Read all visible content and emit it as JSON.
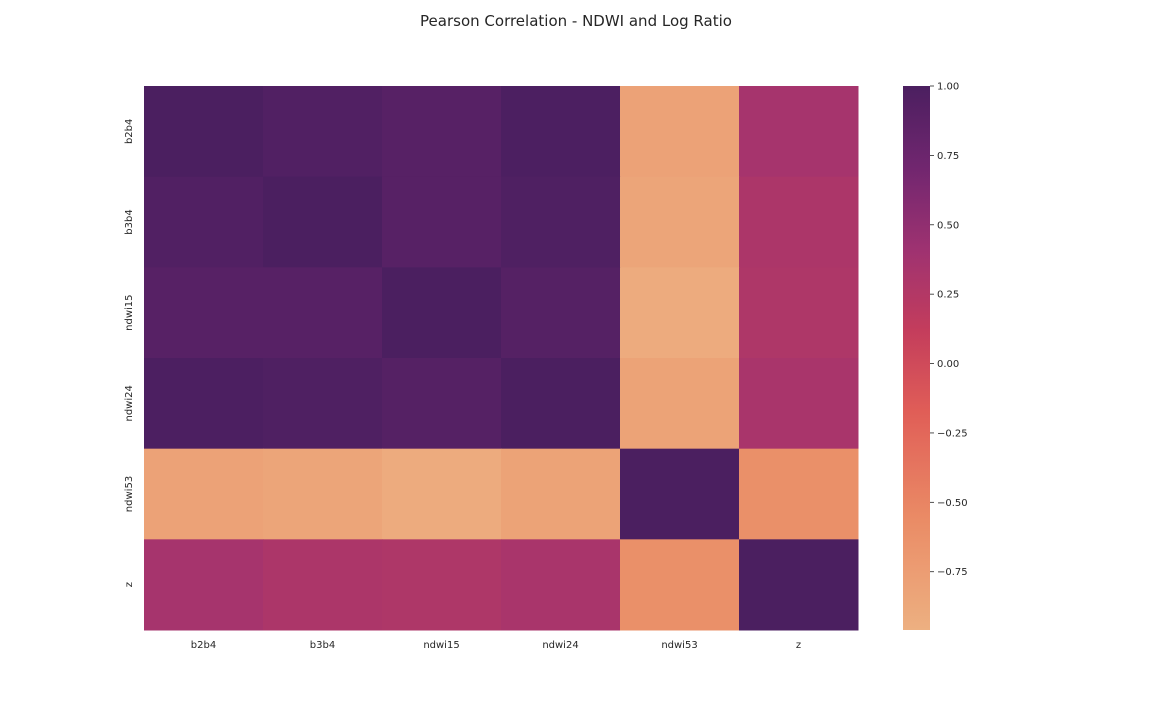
{
  "chart_data": {
    "type": "heatmap",
    "title": "Pearson Correlation - NDWI and Log Ratio",
    "xlabel": "",
    "ylabel": "",
    "x_labels": [
      "b2b4",
      "b3b4",
      "ndwi15",
      "ndwi24",
      "ndwi53",
      "z"
    ],
    "y_labels": [
      "b2b4",
      "b3b4",
      "ndwi15",
      "ndwi24",
      "ndwi53",
      "z"
    ],
    "values": [
      [
        1.0,
        0.95,
        0.91,
        0.99,
        -0.81,
        0.35
      ],
      [
        0.95,
        1.0,
        0.91,
        0.97,
        -0.84,
        0.3
      ],
      [
        0.91,
        0.91,
        1.0,
        0.92,
        -0.91,
        0.29
      ],
      [
        0.99,
        0.97,
        0.92,
        1.0,
        -0.82,
        0.33
      ],
      [
        -0.81,
        -0.84,
        -0.91,
        -0.82,
        1.0,
        -0.61
      ],
      [
        0.35,
        0.3,
        0.29,
        0.33,
        -0.61,
        1.0
      ]
    ],
    "vmin": -0.96,
    "vmax": 1.0,
    "colormap": "flare",
    "colorbar": {
      "ticks": [
        1.0,
        0.75,
        0.5,
        0.25,
        0.0,
        -0.25,
        -0.5,
        -0.75
      ],
      "tick_labels": [
        "1.00",
        "0.75",
        "0.50",
        "0.25",
        "0.00",
        "−0.25",
        "−0.50",
        "−0.75"
      ]
    },
    "grid": false
  }
}
